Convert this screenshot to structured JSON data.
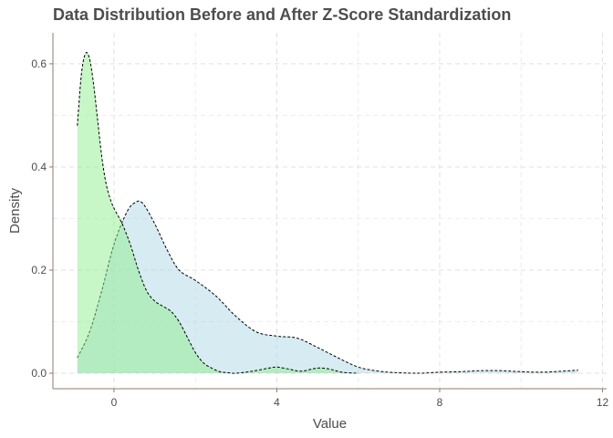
{
  "chart_data": {
    "type": "area",
    "title": "Data Distribution Before and After Z-Score Standardization",
    "xlabel": "Value",
    "ylabel": "Density",
    "xlim": [
      -1.5,
      12.1
    ],
    "ylim": [
      -0.03,
      0.66
    ],
    "x_ticks": [
      0,
      4,
      8,
      12
    ],
    "y_ticks": [
      0.0,
      0.2,
      0.4,
      0.6
    ],
    "x_tick_labels": [
      "0",
      "4",
      "8",
      "12"
    ],
    "y_tick_labels": [
      "0.0",
      "0.2",
      "0.4",
      "0.6"
    ],
    "grid": true,
    "legend": "none",
    "series": [
      {
        "color": "#add8e6",
        "fill_opacity": 0.5,
        "x": [
          -0.9,
          -0.6,
          -0.3,
          0.0,
          0.3,
          0.5,
          0.7,
          1.0,
          1.3,
          1.6,
          2.0,
          2.5,
          3.0,
          3.5,
          4.0,
          4.5,
          5.0,
          5.5,
          6.0,
          6.5,
          7.0,
          7.5,
          8.0,
          8.5,
          9.0,
          9.5,
          10.0,
          10.5,
          11.0,
          11.4
        ],
        "y": [
          0.03,
          0.08,
          0.16,
          0.25,
          0.31,
          0.33,
          0.33,
          0.29,
          0.24,
          0.2,
          0.18,
          0.15,
          0.11,
          0.08,
          0.072,
          0.068,
          0.05,
          0.03,
          0.012,
          0.004,
          0.001,
          0.0,
          0.002,
          0.003,
          0.005,
          0.005,
          0.003,
          0.002,
          0.004,
          0.006
        ]
      },
      {
        "color": "#90ee90",
        "fill_opacity": 0.5,
        "x": [
          -0.9,
          -0.8,
          -0.7,
          -0.6,
          -0.5,
          -0.4,
          -0.3,
          -0.2,
          -0.1,
          0.0,
          0.2,
          0.4,
          0.6,
          0.8,
          1.0,
          1.2,
          1.4,
          1.6,
          1.8,
          2.0,
          2.2,
          2.4,
          2.6,
          2.8,
          3.0,
          3.4,
          3.8,
          4.0,
          4.3,
          4.6,
          5.0,
          5.3,
          5.6,
          6.0
        ],
        "y": [
          0.48,
          0.58,
          0.62,
          0.61,
          0.56,
          0.49,
          0.42,
          0.37,
          0.34,
          0.32,
          0.29,
          0.25,
          0.2,
          0.16,
          0.14,
          0.13,
          0.12,
          0.1,
          0.07,
          0.04,
          0.02,
          0.01,
          0.003,
          0.001,
          0.0,
          0.004,
          0.01,
          0.012,
          0.008,
          0.004,
          0.01,
          0.008,
          0.002,
          0.0
        ]
      }
    ]
  }
}
